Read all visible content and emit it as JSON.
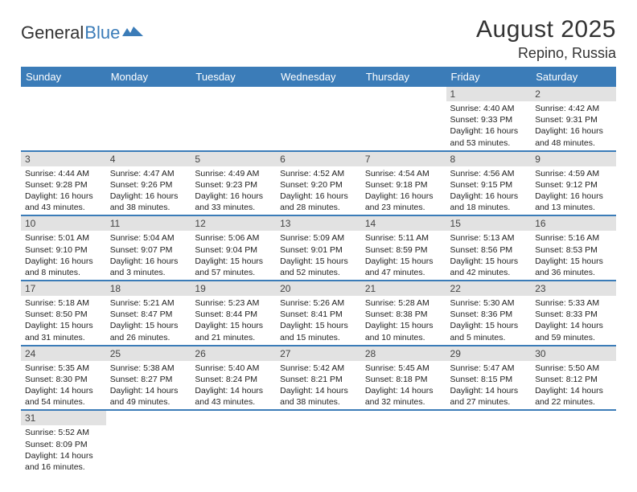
{
  "brand": {
    "part1": "General",
    "part2": "Blue"
  },
  "header": {
    "title": "August 2025",
    "location": "Repino, Russia"
  },
  "colors": {
    "header_bg": "#3b7cb8",
    "daynum_bg": "#e2e2e2",
    "sep": "#3b7cb8"
  },
  "days": [
    "Sunday",
    "Monday",
    "Tuesday",
    "Wednesday",
    "Thursday",
    "Friday",
    "Saturday"
  ],
  "weeks": [
    [
      null,
      null,
      null,
      null,
      null,
      {
        "n": "1",
        "sr": "4:40 AM",
        "ss": "9:33 PM",
        "dl": "16 hours and 53 minutes."
      },
      {
        "n": "2",
        "sr": "4:42 AM",
        "ss": "9:31 PM",
        "dl": "16 hours and 48 minutes."
      }
    ],
    [
      {
        "n": "3",
        "sr": "4:44 AM",
        "ss": "9:28 PM",
        "dl": "16 hours and 43 minutes."
      },
      {
        "n": "4",
        "sr": "4:47 AM",
        "ss": "9:26 PM",
        "dl": "16 hours and 38 minutes."
      },
      {
        "n": "5",
        "sr": "4:49 AM",
        "ss": "9:23 PM",
        "dl": "16 hours and 33 minutes."
      },
      {
        "n": "6",
        "sr": "4:52 AM",
        "ss": "9:20 PM",
        "dl": "16 hours and 28 minutes."
      },
      {
        "n": "7",
        "sr": "4:54 AM",
        "ss": "9:18 PM",
        "dl": "16 hours and 23 minutes."
      },
      {
        "n": "8",
        "sr": "4:56 AM",
        "ss": "9:15 PM",
        "dl": "16 hours and 18 minutes."
      },
      {
        "n": "9",
        "sr": "4:59 AM",
        "ss": "9:12 PM",
        "dl": "16 hours and 13 minutes."
      }
    ],
    [
      {
        "n": "10",
        "sr": "5:01 AM",
        "ss": "9:10 PM",
        "dl": "16 hours and 8 minutes."
      },
      {
        "n": "11",
        "sr": "5:04 AM",
        "ss": "9:07 PM",
        "dl": "16 hours and 3 minutes."
      },
      {
        "n": "12",
        "sr": "5:06 AM",
        "ss": "9:04 PM",
        "dl": "15 hours and 57 minutes."
      },
      {
        "n": "13",
        "sr": "5:09 AM",
        "ss": "9:01 PM",
        "dl": "15 hours and 52 minutes."
      },
      {
        "n": "14",
        "sr": "5:11 AM",
        "ss": "8:59 PM",
        "dl": "15 hours and 47 minutes."
      },
      {
        "n": "15",
        "sr": "5:13 AM",
        "ss": "8:56 PM",
        "dl": "15 hours and 42 minutes."
      },
      {
        "n": "16",
        "sr": "5:16 AM",
        "ss": "8:53 PM",
        "dl": "15 hours and 36 minutes."
      }
    ],
    [
      {
        "n": "17",
        "sr": "5:18 AM",
        "ss": "8:50 PM",
        "dl": "15 hours and 31 minutes."
      },
      {
        "n": "18",
        "sr": "5:21 AM",
        "ss": "8:47 PM",
        "dl": "15 hours and 26 minutes."
      },
      {
        "n": "19",
        "sr": "5:23 AM",
        "ss": "8:44 PM",
        "dl": "15 hours and 21 minutes."
      },
      {
        "n": "20",
        "sr": "5:26 AM",
        "ss": "8:41 PM",
        "dl": "15 hours and 15 minutes."
      },
      {
        "n": "21",
        "sr": "5:28 AM",
        "ss": "8:38 PM",
        "dl": "15 hours and 10 minutes."
      },
      {
        "n": "22",
        "sr": "5:30 AM",
        "ss": "8:36 PM",
        "dl": "15 hours and 5 minutes."
      },
      {
        "n": "23",
        "sr": "5:33 AM",
        "ss": "8:33 PM",
        "dl": "14 hours and 59 minutes."
      }
    ],
    [
      {
        "n": "24",
        "sr": "5:35 AM",
        "ss": "8:30 PM",
        "dl": "14 hours and 54 minutes."
      },
      {
        "n": "25",
        "sr": "5:38 AM",
        "ss": "8:27 PM",
        "dl": "14 hours and 49 minutes."
      },
      {
        "n": "26",
        "sr": "5:40 AM",
        "ss": "8:24 PM",
        "dl": "14 hours and 43 minutes."
      },
      {
        "n": "27",
        "sr": "5:42 AM",
        "ss": "8:21 PM",
        "dl": "14 hours and 38 minutes."
      },
      {
        "n": "28",
        "sr": "5:45 AM",
        "ss": "8:18 PM",
        "dl": "14 hours and 32 minutes."
      },
      {
        "n": "29",
        "sr": "5:47 AM",
        "ss": "8:15 PM",
        "dl": "14 hours and 27 minutes."
      },
      {
        "n": "30",
        "sr": "5:50 AM",
        "ss": "8:12 PM",
        "dl": "14 hours and 22 minutes."
      }
    ],
    [
      {
        "n": "31",
        "sr": "5:52 AM",
        "ss": "8:09 PM",
        "dl": "14 hours and 16 minutes."
      },
      null,
      null,
      null,
      null,
      null,
      null
    ]
  ],
  "labels": {
    "sunrise": "Sunrise: ",
    "sunset": "Sunset: ",
    "daylight": "Daylight: "
  }
}
